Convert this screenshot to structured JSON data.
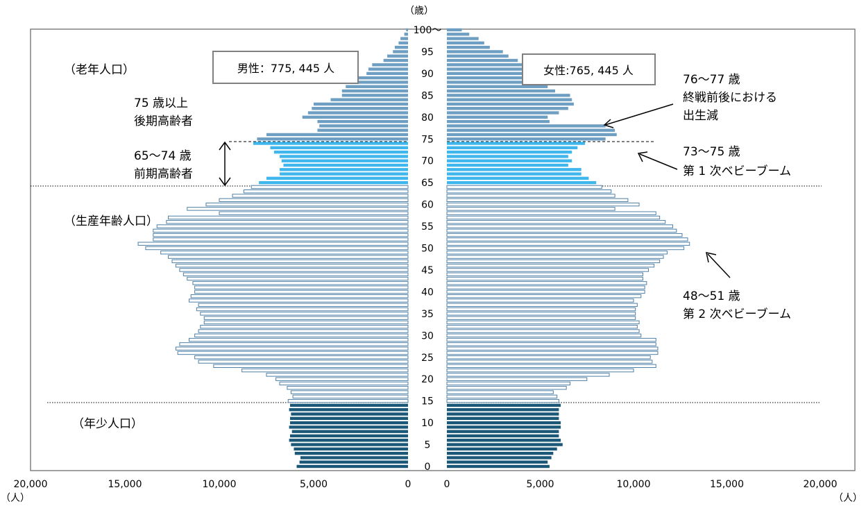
{
  "chart_data": {
    "type": "bar",
    "orientation": "horizontal",
    "layout": "population-pyramid",
    "x_unit": "（人）",
    "y_unit": "（歳）",
    "xlim": [
      0,
      20000
    ],
    "ages": [
      0,
      1,
      2,
      3,
      4,
      5,
      6,
      7,
      8,
      9,
      10,
      11,
      12,
      13,
      14,
      15,
      16,
      17,
      18,
      19,
      20,
      21,
      22,
      23,
      24,
      25,
      26,
      27,
      28,
      29,
      30,
      31,
      32,
      33,
      34,
      35,
      36,
      37,
      38,
      39,
      40,
      41,
      42,
      43,
      44,
      45,
      46,
      47,
      48,
      49,
      50,
      51,
      52,
      53,
      54,
      55,
      56,
      57,
      58,
      59,
      60,
      61,
      62,
      63,
      64,
      65,
      66,
      67,
      68,
      69,
      70,
      71,
      72,
      73,
      74,
      75,
      76,
      77,
      78,
      79,
      80,
      81,
      82,
      83,
      84,
      85,
      86,
      87,
      88,
      89,
      90,
      91,
      92,
      93,
      94,
      95,
      96,
      97,
      98,
      99,
      100
    ],
    "age_tick_labels": [
      "0",
      "5",
      "10",
      "15",
      "20",
      "25",
      "30",
      "35",
      "40",
      "45",
      "50",
      "55",
      "60",
      "65",
      "70",
      "75",
      "80",
      "85",
      "90",
      "95",
      "100〜"
    ],
    "x_tick_labels_left": [
      "20,000",
      "15,000",
      "10,000",
      "5,000",
      "0"
    ],
    "x_tick_labels_right": [
      "0",
      "5,000",
      "10,000",
      "15,000",
      "20,000"
    ],
    "groups": [
      {
        "name": "（年少人口）",
        "from": 0,
        "to": 14,
        "color": "#1b5878"
      },
      {
        "name": "（生産年齢人口）",
        "from": 15,
        "to": 64,
        "color": "#c7dbee"
      },
      {
        "name": "前期高齢者",
        "from": 65,
        "to": 74,
        "color": "#3fb6ec"
      },
      {
        "name": "後期高齢者",
        "from": 75,
        "to": 100,
        "color": "#6e9fc3"
      }
    ],
    "series": [
      {
        "name": "男性",
        "total_label": "男性：775,445 人",
        "values": [
          5900,
          5750,
          5700,
          6000,
          6050,
          6200,
          6300,
          6250,
          6150,
          6300,
          6250,
          6250,
          6200,
          6300,
          6250,
          6350,
          6100,
          6200,
          6400,
          6800,
          7000,
          7500,
          8800,
          10300,
          11100,
          11300,
          12200,
          12300,
          12100,
          11600,
          11300,
          11100,
          11000,
          10800,
          10800,
          11000,
          11200,
          11100,
          11600,
          11500,
          11300,
          11300,
          11400,
          11700,
          11900,
          12100,
          12300,
          12500,
          12700,
          13100,
          13900,
          14300,
          13500,
          13500,
          13500,
          13300,
          12800,
          12700,
          10000,
          11700,
          10700,
          10000,
          9300,
          8700,
          8300,
          7900,
          7500,
          6800,
          6800,
          6600,
          6700,
          6800,
          7100,
          7300,
          8200,
          8000,
          7500,
          4800,
          4700,
          4800,
          5600,
          5300,
          5100,
          5000,
          4100,
          3500,
          3500,
          3300,
          3000,
          2700,
          2200,
          2100,
          1900,
          1300,
          1100,
          800,
          700,
          500,
          400,
          200,
          100
        ]
      },
      {
        "name": "女性",
        "total_label": "女性:765,445 人",
        "values": [
          5500,
          5400,
          5600,
          5700,
          5900,
          6200,
          6100,
          6000,
          6000,
          6100,
          6100,
          6000,
          6000,
          6000,
          6100,
          6000,
          5900,
          5700,
          6400,
          6600,
          7500,
          8700,
          10000,
          11200,
          11000,
          10900,
          11300,
          11300,
          11200,
          11200,
          10400,
          10300,
          10200,
          10300,
          10100,
          10100,
          10100,
          10200,
          10000,
          10400,
          10600,
          10600,
          10700,
          10500,
          10500,
          10800,
          11100,
          11400,
          11600,
          11800,
          12700,
          13000,
          12900,
          12600,
          12300,
          12100,
          11700,
          11400,
          11200,
          9000,
          10300,
          9700,
          9000,
          8800,
          8300,
          8000,
          7600,
          7200,
          7200,
          6500,
          6700,
          6500,
          6700,
          7000,
          7400,
          8500,
          9100,
          9000,
          8500,
          5500,
          5400,
          6000,
          6500,
          6800,
          6700,
          6600,
          5800,
          5400,
          5600,
          4800,
          4600,
          4700,
          4300,
          3800,
          3300,
          3000,
          2300,
          2000,
          1700,
          1200,
          800
        ]
      }
    ],
    "annotations": [
      {
        "id": "male_total",
        "text": "男性：775, 445 人"
      },
      {
        "id": "female_total",
        "text": "女性:765, 445 人"
      },
      {
        "id": "old",
        "text": "（老年人口）"
      },
      {
        "id": "latter_elderly_1",
        "text": "75 歳以上"
      },
      {
        "id": "latter_elderly_2",
        "text": "後期高齢者"
      },
      {
        "id": "former_elderly_1",
        "text": "65〜74 歳"
      },
      {
        "id": "former_elderly_2",
        "text": "前期高齢者"
      },
      {
        "id": "working",
        "text": "（生産年齢人口）"
      },
      {
        "id": "young",
        "text": "（年少人口）"
      },
      {
        "id": "war_1",
        "text": "76〜77 歳"
      },
      {
        "id": "war_2",
        "text": "終戦前後における"
      },
      {
        "id": "war_3",
        "text": "出生減"
      },
      {
        "id": "boom1_1",
        "text": "73〜75 歳"
      },
      {
        "id": "boom1_2",
        "text": "第 1 次ベビーブーム"
      },
      {
        "id": "boom2_1",
        "text": "48〜51 歳"
      },
      {
        "id": "boom2_2",
        "text": "第 2 次ベビーブーム"
      }
    ]
  }
}
